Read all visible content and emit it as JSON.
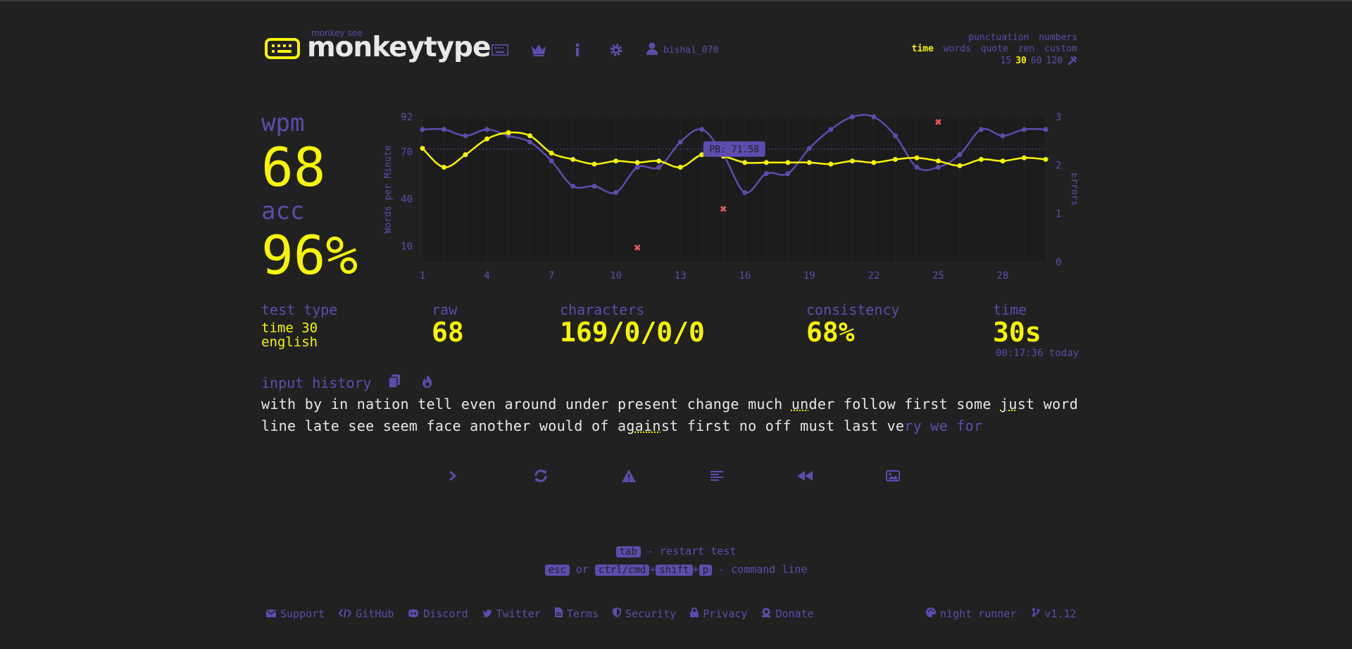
{
  "header": {
    "logo_small": "monkey see",
    "logo_text": "monkeytype",
    "user": "bishal_070",
    "mode_row1": [
      "punctuation",
      "numbers"
    ],
    "mode_row2": [
      "time",
      "words",
      "quote",
      "zen",
      "custom"
    ],
    "mode_row2_active": "time",
    "mode_row3": [
      "15",
      "30",
      "60",
      "120"
    ],
    "mode_row3_active": "30",
    "icons": [
      "keyboard-icon",
      "crown-icon",
      "info-icon",
      "gear-icon",
      "user-icon",
      "wrench-icon"
    ]
  },
  "result": {
    "wpm_label": "wpm",
    "wpm": "68",
    "acc_label": "acc",
    "acc": "96%",
    "test_type_label": "test type",
    "test_type_line1": "time 30",
    "test_type_line2": "english",
    "raw_label": "raw",
    "raw": "68",
    "characters_label": "characters",
    "characters": "169/0/0/0",
    "consistency_label": "consistency",
    "consistency": "68%",
    "time_label": "time",
    "time": "30s",
    "timestamp": "00:17:36 today"
  },
  "chart_data": {
    "type": "line",
    "ylabel": "Words per Minute",
    "y2label": "Errors",
    "x": [
      1,
      2,
      3,
      4,
      5,
      6,
      7,
      8,
      9,
      10,
      11,
      12,
      13,
      14,
      15,
      16,
      17,
      18,
      19,
      20,
      21,
      22,
      23,
      24,
      25,
      26,
      27,
      28,
      29,
      30
    ],
    "x_ticks": [
      "1",
      "4",
      "7",
      "10",
      "13",
      "16",
      "19",
      "22",
      "25",
      "28"
    ],
    "ylim": [
      0,
      92
    ],
    "y_ticks": [
      "10",
      "40",
      "70",
      "92"
    ],
    "y2lim": [
      0,
      3
    ],
    "y2_ticks": [
      "0",
      "1",
      "2",
      "3"
    ],
    "pb_line": 71.58,
    "pb_label": "PB: 71.58",
    "series": [
      {
        "values": [
          72,
          60,
          68,
          78,
          82,
          80,
          69,
          65,
          62,
          64,
          63,
          64,
          60,
          68,
          67,
          63,
          63,
          63,
          63,
          62,
          64,
          63,
          65,
          66,
          64,
          61,
          65,
          64,
          66,
          65
        ]
      },
      {
        "values": [
          84,
          84,
          80,
          84,
          80,
          76,
          64,
          48,
          48,
          44,
          60,
          60,
          76,
          84,
          68,
          44,
          56,
          56,
          72,
          84,
          92,
          92,
          80,
          60,
          60,
          68,
          84,
          80,
          84,
          84
        ]
      }
    ],
    "errors": [
      {
        "x": 11,
        "y": 0.3
      },
      {
        "x": 15,
        "y": 1.1
      },
      {
        "x": 25,
        "y": 2.9
      }
    ],
    "colors": {
      "wpm": "#f7f700",
      "raw": "#5d4cad",
      "errors": "#e05b5b"
    }
  },
  "history": {
    "label": "input history",
    "line1_a": "with by in nation tell even around under present change much ",
    "line1_err1": "un",
    "line1_b": "der follow first some ",
    "line1_err2": "ju",
    "line1_c": "st word",
    "line2_a": "line late see seem face another would of ag",
    "line2_err": "ain",
    "line2_b": "st first no off must last ve",
    "line2_miss": "ry we for"
  },
  "hints": {
    "tab": "tab",
    "restart": " - restart test",
    "esc": "esc",
    "or": " or ",
    "ctrl": "ctrl/cmd",
    "plus": "+",
    "shift": "shift",
    "p": "p",
    "command": " - command line"
  },
  "footer": {
    "links": [
      "Support",
      "GitHub",
      "Discord",
      "Twitter",
      "Terms",
      "Security",
      "Privacy",
      "Donate"
    ],
    "theme": "night runner",
    "version": "v1.12"
  }
}
